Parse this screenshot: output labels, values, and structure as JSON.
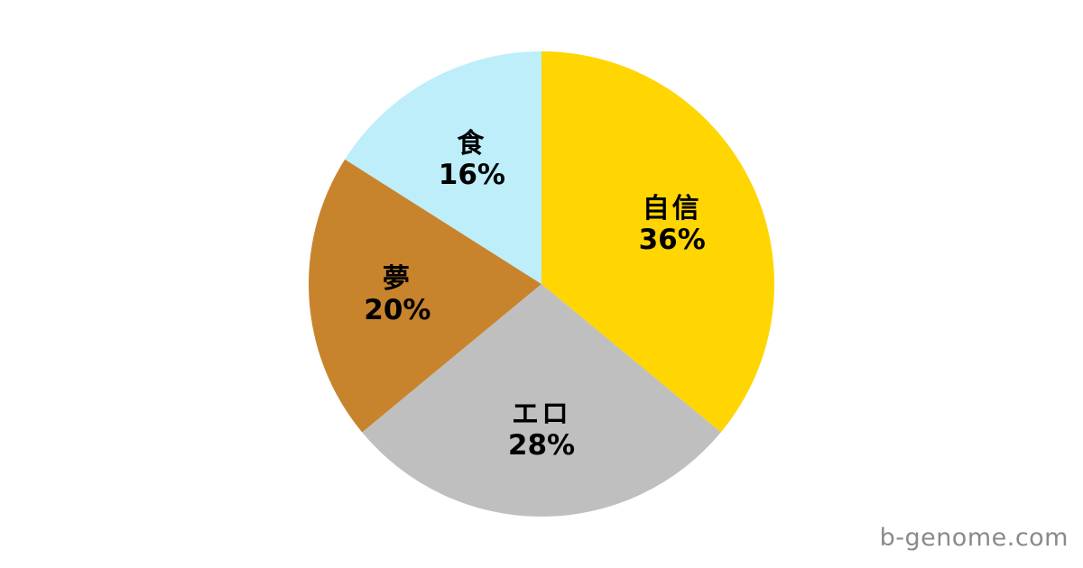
{
  "page": {
    "background_color": "#ffffff"
  },
  "watermark": {
    "text": "b-genome.com",
    "color": "#8a8a8a"
  },
  "chart_data": {
    "type": "pie",
    "title": "",
    "direction": "clockwise",
    "start_angle_deg_from_top": 0,
    "legend_position": "none",
    "labels_inside_slices": true,
    "label_text_color": "#000000",
    "categories": [
      "自信",
      "エロ",
      "夢",
      "食"
    ],
    "values": [
      36,
      28,
      20,
      16
    ],
    "unit": "%",
    "segments": [
      {
        "label": "自信",
        "value": 36,
        "display": "36%",
        "color": "#FFD502"
      },
      {
        "label": "エロ",
        "value": 28,
        "display": "28%",
        "color": "#BFBFBF"
      },
      {
        "label": "夢",
        "value": 20,
        "display": "20%",
        "color": "#C8832D"
      },
      {
        "label": "食",
        "value": 16,
        "display": "16%",
        "color": "#BDEEFA"
      }
    ]
  }
}
